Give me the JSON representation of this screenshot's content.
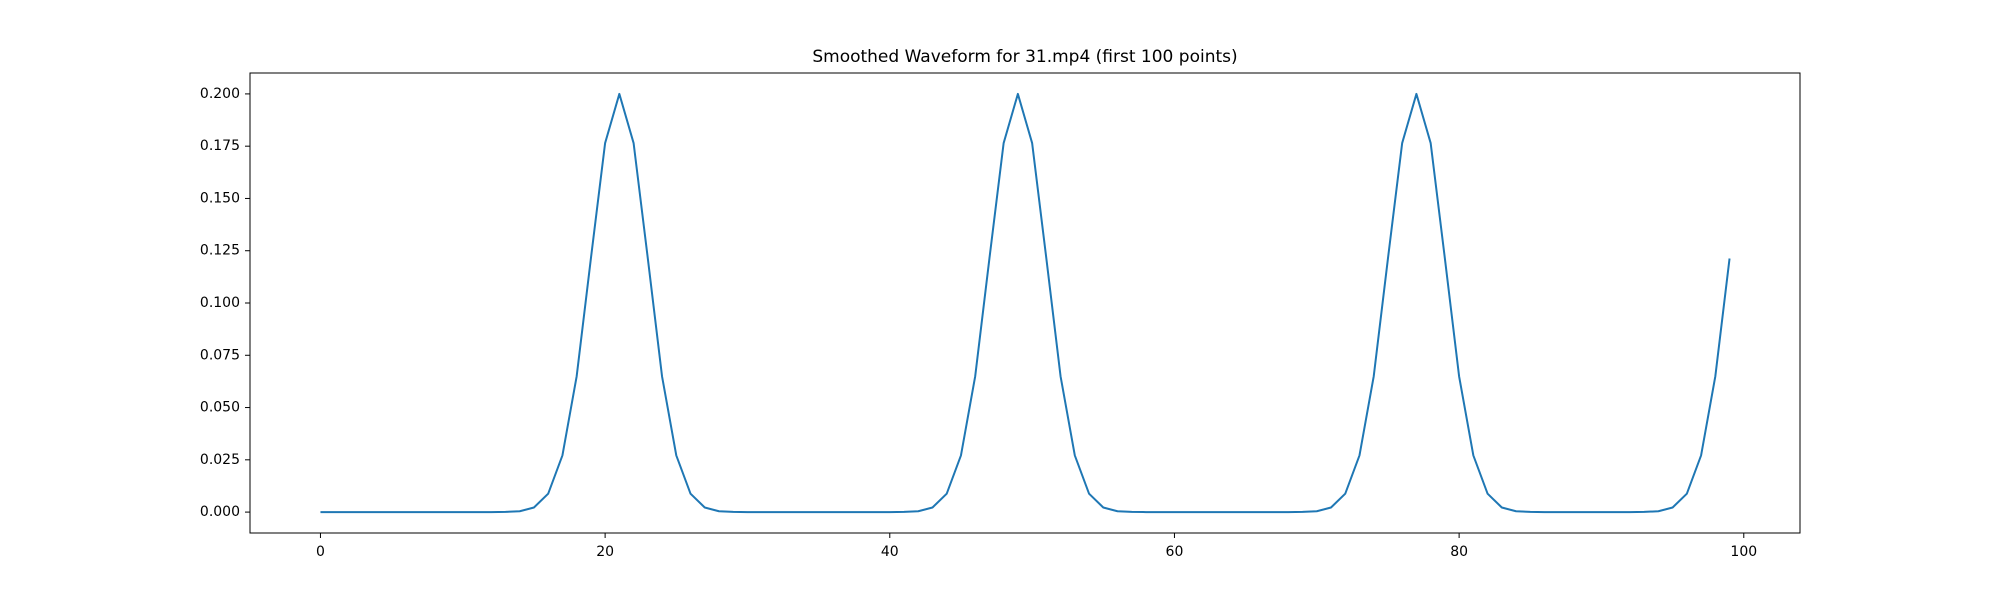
{
  "chart_data": {
    "type": "line",
    "title": "Smoothed Waveform for 31.mp4 (first 100 points)",
    "x": [
      0,
      1,
      2,
      3,
      4,
      5,
      6,
      7,
      8,
      9,
      10,
      11,
      12,
      13,
      14,
      15,
      16,
      17,
      18,
      19,
      20,
      21,
      22,
      23,
      24,
      25,
      26,
      27,
      28,
      29,
      30,
      31,
      32,
      33,
      34,
      35,
      36,
      37,
      38,
      39,
      40,
      41,
      42,
      43,
      44,
      45,
      46,
      47,
      48,
      49,
      50,
      51,
      52,
      53,
      54,
      55,
      56,
      57,
      58,
      59,
      60,
      61,
      62,
      63,
      64,
      65,
      66,
      67,
      68,
      69,
      70,
      71,
      72,
      73,
      74,
      75,
      76,
      77,
      78,
      79,
      80,
      81,
      82,
      83,
      84,
      85,
      86,
      87,
      88,
      89,
      90,
      91,
      92,
      93,
      94,
      95,
      96,
      97,
      98,
      99
    ],
    "values": [
      0,
      0,
      0,
      0,
      0,
      0,
      0,
      0,
      0,
      0,
      0,
      0,
      0,
      0.0001,
      0.0004,
      0.0022,
      0.0088,
      0.0271,
      0.0649,
      0.1213,
      0.1765,
      0.2,
      0.1765,
      0.1213,
      0.0649,
      0.0271,
      0.0088,
      0.0022,
      0.0004,
      0.0001,
      0,
      0,
      0,
      0,
      0,
      0,
      0,
      0,
      0,
      0,
      0,
      0.0001,
      0.0004,
      0.0022,
      0.0088,
      0.0271,
      0.0649,
      0.1213,
      0.1765,
      0.2,
      0.1765,
      0.1213,
      0.0649,
      0.0271,
      0.0088,
      0.0022,
      0.0004,
      0.0001,
      0,
      0,
      0,
      0,
      0,
      0,
      0,
      0,
      0,
      0,
      0,
      0.0001,
      0.0004,
      0.0022,
      0.0088,
      0.0271,
      0.0649,
      0.1213,
      0.1765,
      0.2,
      0.1765,
      0.1213,
      0.0649,
      0.0271,
      0.0088,
      0.0022,
      0.0004,
      0.0001,
      0,
      0,
      0,
      0,
      0,
      0,
      0,
      0.0001,
      0.0004,
      0.0022,
      0.0088,
      0.0271,
      0.0649,
      0.1213
    ],
    "color": "#1f77b4",
    "xlim": [
      -4.95,
      103.95
    ],
    "ylim": [
      -0.01,
      0.21
    ],
    "xticks": [
      0,
      20,
      40,
      60,
      80,
      100
    ],
    "yticks": [
      {
        "value": 0,
        "label": "0.000"
      },
      {
        "value": 0.025,
        "label": "0.025"
      },
      {
        "value": 0.05,
        "label": "0.050"
      },
      {
        "value": 0.075,
        "label": "0.075"
      },
      {
        "value": 0.1,
        "label": "0.100"
      },
      {
        "value": 0.125,
        "label": "0.125"
      },
      {
        "value": 0.15,
        "label": "0.150"
      },
      {
        "value": 0.175,
        "label": "0.175"
      },
      {
        "value": 0.2,
        "label": "0.200"
      }
    ],
    "grid": false
  }
}
